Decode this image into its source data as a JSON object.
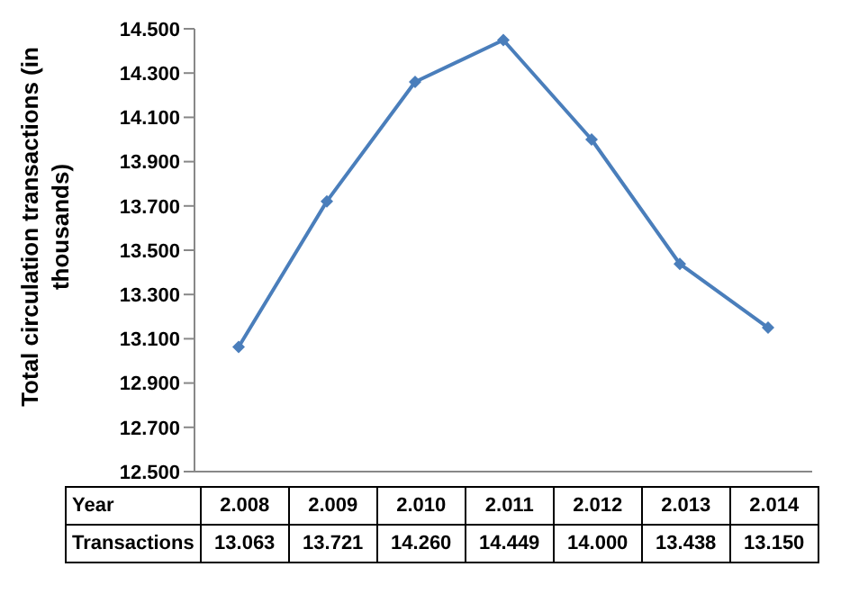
{
  "chart_data": {
    "type": "line",
    "ylabel": "Total circulation transactions (in thousands)",
    "xlabel": "Year",
    "categories": [
      "2.008",
      "2.009",
      "2.010",
      "2.011",
      "2.012",
      "2.013",
      "2.014"
    ],
    "series": [
      {
        "name": "Transactions",
        "color": "#4a7ebb",
        "values": [
          13.063,
          13.721,
          14.26,
          14.449,
          14.0,
          13.438,
          13.15
        ],
        "value_labels": [
          "13.063",
          "13.721",
          "14.260",
          "14.449",
          "14.000",
          "13.438",
          "13.150"
        ]
      }
    ],
    "ylim": [
      12.5,
      14.5
    ],
    "yticks": [
      {
        "value": 12.5,
        "label": "12.500"
      },
      {
        "value": 12.7,
        "label": "12.700"
      },
      {
        "value": 12.9,
        "label": "12.900"
      },
      {
        "value": 13.1,
        "label": "13.100"
      },
      {
        "value": 13.3,
        "label": "13.300"
      },
      {
        "value": 13.5,
        "label": "13.500"
      },
      {
        "value": 13.7,
        "label": "13.700"
      },
      {
        "value": 13.9,
        "label": "13.900"
      },
      {
        "value": 14.1,
        "label": "14.100"
      },
      {
        "value": 14.3,
        "label": "14.300"
      },
      {
        "value": 14.5,
        "label": "14.500"
      }
    ],
    "grid": false,
    "legend": false,
    "marker": "diamond",
    "line_style": "solid"
  }
}
